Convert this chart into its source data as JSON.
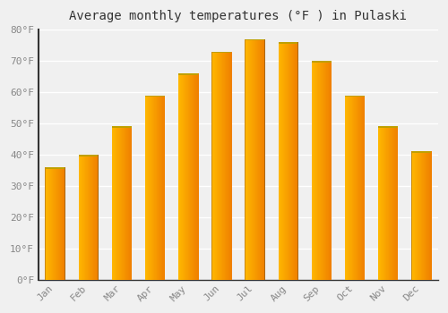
{
  "title": "Average monthly temperatures (°F ) in Pulaski",
  "months": [
    "Jan",
    "Feb",
    "Mar",
    "Apr",
    "May",
    "Jun",
    "Jul",
    "Aug",
    "Sep",
    "Oct",
    "Nov",
    "Dec"
  ],
  "temps": [
    36,
    40,
    49,
    59,
    66,
    73,
    77,
    76,
    70,
    59,
    49,
    41
  ],
  "bar_color_left": "#FFB800",
  "bar_color_right": "#F08000",
  "bar_color_top": "#C8C8C8",
  "ylim": [
    0,
    80
  ],
  "yticks": [
    0,
    10,
    20,
    30,
    40,
    50,
    60,
    70,
    80
  ],
  "ytick_labels": [
    "0°F",
    "10°F",
    "20°F",
    "30°F",
    "40°F",
    "50°F",
    "60°F",
    "70°F",
    "80°F"
  ],
  "background_color": "#f0f0f0",
  "grid_color": "#ffffff",
  "title_fontsize": 10,
  "tick_fontsize": 8,
  "font_family": "monospace",
  "bar_width": 0.6,
  "left_spine_color": "#333333"
}
